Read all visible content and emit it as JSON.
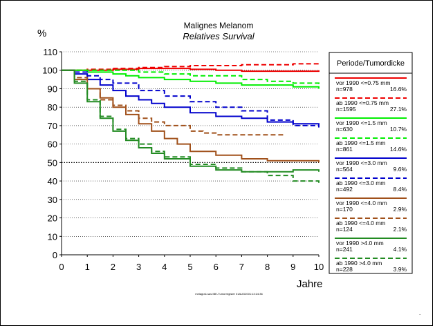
{
  "chart_data": {
    "type": "line",
    "title": "Malignes Melanom",
    "subtitle": "Relatives Survival",
    "ylabel": "%",
    "xlabel": "Jahre",
    "xlim": [
      0,
      10
    ],
    "ylim": [
      0,
      110
    ],
    "x_ticks": [
      0,
      1,
      2,
      3,
      4,
      5,
      6,
      7,
      8,
      9,
      10
    ],
    "y_ticks": [
      0,
      10,
      20,
      30,
      40,
      50,
      60,
      70,
      80,
      90,
      100,
      110
    ],
    "grid": "horizontal dotted",
    "reference_line": 50,
    "legend_title": "Periode/Tumordicke",
    "legend_position": "right",
    "footer": "melagra1.sas IBE-Tumorregister 01AUG2001:13:24:36",
    "series": [
      {
        "name": "vor 1990 <=0.75 mm",
        "n": "n=978",
        "pct": "16.6%",
        "color": "#ee0000",
        "dash": "solid",
        "x": [
          0,
          0.5,
          1,
          2,
          3,
          4,
          5,
          6,
          7,
          8,
          9,
          10
        ],
        "y": [
          100,
          100,
          100,
          100.5,
          101,
          101,
          100.5,
          100,
          99.5,
          99.5,
          99.5,
          100
        ]
      },
      {
        "name": "ab 1990 <=0.75 mm",
        "n": "n=1595",
        "pct": "27.1%",
        "color": "#ee0000",
        "dash": "dashed",
        "x": [
          0,
          1,
          2,
          3,
          4,
          5,
          6,
          7,
          8,
          9,
          10
        ],
        "y": [
          100,
          100.5,
          101,
          101.5,
          102,
          102.5,
          102.5,
          103,
          103,
          103.5,
          103.5
        ]
      },
      {
        "name": "vor 1990 <=1.5  mm",
        "n": "n=630",
        "pct": "10.7%",
        "color": "#00ee00",
        "dash": "solid",
        "x": [
          0,
          1,
          2,
          2.5,
          3,
          4,
          5,
          6,
          7,
          8,
          9,
          10
        ],
        "y": [
          100,
          99,
          98,
          97,
          96,
          95,
          94,
          93,
          92,
          92,
          91,
          90
        ]
      },
      {
        "name": "ab 1990 <=1.5  mm",
        "n": "n=861",
        "pct": "14.6%",
        "color": "#00ee00",
        "dash": "dashed",
        "x": [
          0,
          1,
          2,
          3,
          4,
          5,
          6,
          7,
          8,
          9,
          10
        ],
        "y": [
          100,
          100,
          100,
          99,
          98,
          97,
          97,
          95,
          94,
          93,
          92
        ]
      },
      {
        "name": "vor 1990 <=3.0  mm",
        "n": "n=564",
        "pct": "9.6%",
        "color": "#0000cc",
        "dash": "solid",
        "x": [
          0,
          0.5,
          1,
          1.5,
          2,
          2.5,
          3,
          3.5,
          4,
          5,
          6,
          7,
          8,
          9,
          10
        ],
        "y": [
          100,
          98,
          95,
          92,
          89,
          86,
          84,
          82,
          80,
          77,
          75,
          74,
          72,
          71,
          69
        ]
      },
      {
        "name": "ab 1990 <=3.0  mm",
        "n": "n=492",
        "pct": "8.4%",
        "color": "#0000cc",
        "dash": "dashed",
        "x": [
          0,
          0.5,
          1,
          1.5,
          2,
          3,
          4,
          5,
          6,
          7,
          8,
          9,
          10
        ],
        "y": [
          100,
          99,
          97,
          95,
          93,
          89,
          86,
          83,
          80,
          78,
          73,
          70,
          70
        ]
      },
      {
        "name": "vor 1990 <=4.0  mm",
        "n": "n=170",
        "pct": "2.9%",
        "color": "#a0501a",
        "dash": "solid",
        "x": [
          0,
          0.5,
          1,
          1.5,
          2,
          2.5,
          3,
          3.5,
          4,
          4.5,
          5,
          6,
          7,
          8,
          9,
          10
        ],
        "y": [
          100,
          95,
          90,
          85,
          80,
          76,
          71,
          67,
          63,
          60,
          56,
          54,
          52,
          51,
          51,
          50
        ]
      },
      {
        "name": "ab 1990 <=4.0  mm",
        "n": "n=124",
        "pct": "2.1%",
        "color": "#a0501a",
        "dash": "dashed",
        "x": [
          0,
          0.5,
          1,
          1.5,
          2,
          2.5,
          3,
          3.5,
          4,
          5,
          5.5,
          6,
          7,
          8,
          8.7
        ],
        "y": [
          100,
          96,
          90,
          84,
          81,
          78,
          74,
          72,
          70,
          67,
          66,
          65,
          65,
          65,
          65
        ]
      },
      {
        "name": "vor 1990 >4.0  mm",
        "n": "n=241",
        "pct": "4.1%",
        "color": "#228b22",
        "dash": "solid",
        "x": [
          0,
          0.5,
          1,
          1.5,
          2,
          2.5,
          3,
          3.5,
          4,
          5,
          6,
          7,
          8,
          9,
          10
        ],
        "y": [
          100,
          93,
          83,
          74,
          67,
          62,
          58,
          55,
          52,
          48,
          46,
          45,
          45,
          46,
          45
        ]
      },
      {
        "name": "ab 1990 >4.0  mm",
        "n": "n=228",
        "pct": "3.9%",
        "color": "#228b22",
        "dash": "dashed",
        "x": [
          0,
          0.5,
          1,
          1.5,
          2,
          2.5,
          3,
          3.5,
          4,
          5,
          6,
          7,
          8,
          9,
          10
        ],
        "y": [
          100,
          94,
          84,
          75,
          68,
          63,
          60,
          56,
          53,
          49,
          47,
          45,
          43,
          40,
          38
        ]
      }
    ]
  }
}
